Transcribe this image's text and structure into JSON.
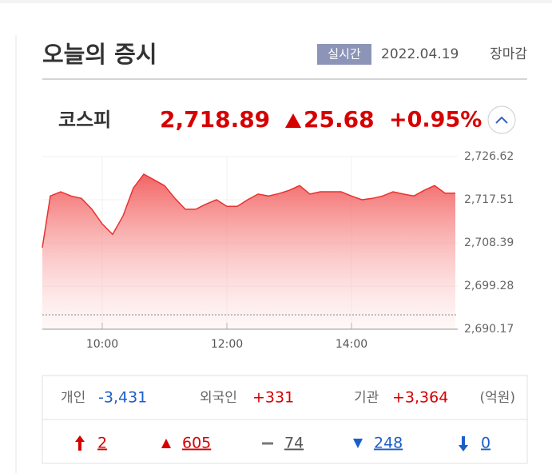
{
  "header": {
    "title": "오늘의 증시",
    "badge": "실시간",
    "date": "2022.04.19",
    "status": "장마감"
  },
  "index": {
    "name": "코스피",
    "value": "2,718.89",
    "change": "25.68",
    "change_pct": "+0.95%"
  },
  "chart_data": {
    "type": "area",
    "color": "#e8322f",
    "x": [
      "09:00",
      "09:10",
      "09:20",
      "09:30",
      "09:40",
      "09:50",
      "10:00",
      "10:10",
      "10:20",
      "10:30",
      "10:40",
      "10:50",
      "11:00",
      "11:10",
      "11:20",
      "11:30",
      "11:40",
      "11:50",
      "12:00",
      "12:10",
      "12:20",
      "12:30",
      "12:40",
      "12:50",
      "13:00",
      "13:10",
      "13:20",
      "13:30",
      "13:40",
      "13:50",
      "14:00",
      "14:10",
      "14:20",
      "14:30",
      "14:40",
      "14:50",
      "15:00",
      "15:10",
      "15:20",
      "15:30",
      "15:40"
    ],
    "values": [
      2707.4,
      2718.3,
      2719.2,
      2718.3,
      2717.8,
      2715.5,
      2712.4,
      2710.2,
      2714.1,
      2720.0,
      2722.9,
      2721.7,
      2720.5,
      2717.8,
      2715.5,
      2715.5,
      2716.6,
      2717.5,
      2716.1,
      2716.1,
      2717.5,
      2718.7,
      2718.3,
      2718.8,
      2719.5,
      2720.5,
      2718.7,
      2719.2,
      2719.2,
      2719.2,
      2718.3,
      2717.5,
      2717.8,
      2718.3,
      2719.2,
      2718.7,
      2718.3,
      2719.5,
      2720.5,
      2718.9,
      2718.89
    ],
    "baseline": 2693.21,
    "xticks": [
      "10:00",
      "12:00",
      "14:00"
    ],
    "ylim": [
      2690.17,
      2726.62
    ],
    "yticks": [
      {
        "value": 2726.62,
        "label": "2,726.62"
      },
      {
        "value": 2717.51,
        "label": "2,717.51"
      },
      {
        "value": 2708.39,
        "label": "2,708.39"
      },
      {
        "value": 2699.28,
        "label": "2,699.28"
      },
      {
        "value": 2690.17,
        "label": "2,690.17"
      }
    ]
  },
  "investors": [
    {
      "name": "개인",
      "value": "-3,431"
    },
    {
      "name": "외국인",
      "value": "+331"
    },
    {
      "name": "기관",
      "value": "+3,364"
    }
  ],
  "unit": "(억원)",
  "breadth": [
    2,
    605,
    74,
    248,
    0
  ]
}
